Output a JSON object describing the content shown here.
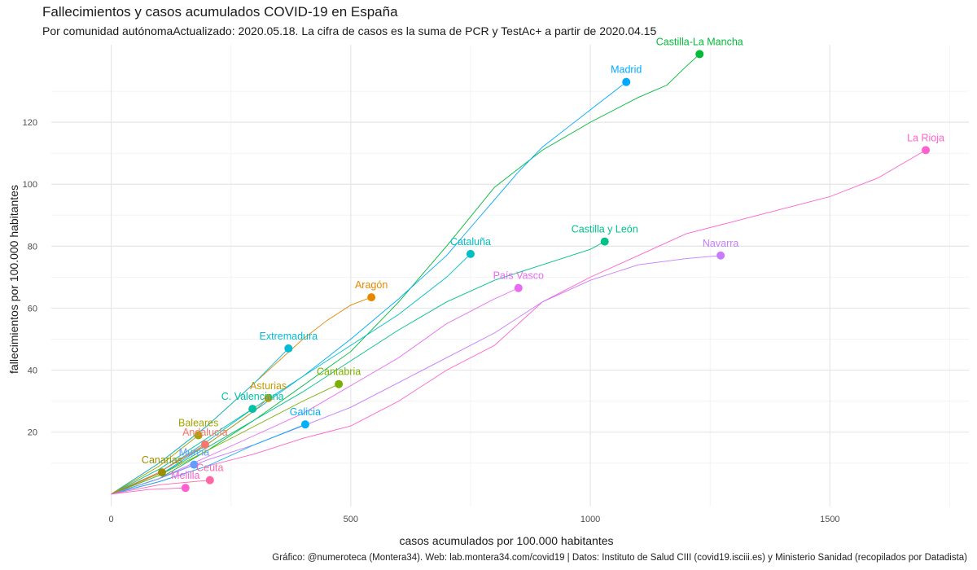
{
  "title": "Fallecimientos y casos acumulados COVID-19 en España",
  "subtitle": "Por comunidad autónomaActualizado: 2020.05.18. La cifra de casos es la suma de PCR y TestAc+ a partir de 2020.04.15",
  "caption": "Gráfico: @numeroteca (Montera34). Web: lab.montera34.com/covid19 | Datos: Instituto de Salud CIII (covid19.isciii.es) y Ministerio Sanidad (recopilados por Datadista)",
  "chart_data": {
    "type": "line",
    "xlabel": "casos acumulados por 100.000 habitantes",
    "ylabel": "fallecimientos por 100.000 habitantes",
    "xlim": [
      -125,
      1790
    ],
    "ylim": [
      -4,
      145
    ],
    "xticks": [
      0,
      500,
      1000,
      1500
    ],
    "yticks": [
      20,
      40,
      60,
      80,
      100,
      120
    ],
    "grid": true,
    "legend": "none",
    "series": [
      {
        "name": "Castilla-La Mancha",
        "color": "#00BA38",
        "x": [
          0,
          100,
          200,
          300,
          400,
          500,
          600,
          700,
          800,
          900,
          1000,
          1100,
          1160,
          1200,
          1228
        ],
        "y": [
          0,
          5,
          14,
          24,
          35,
          46,
          62,
          80,
          99,
          111,
          120,
          128,
          132,
          138,
          142
        ]
      },
      {
        "name": "Madrid",
        "color": "#00A9FF",
        "x": [
          0,
          100,
          200,
          300,
          400,
          500,
          600,
          700,
          750,
          800,
          850,
          900,
          950,
          1000,
          1050,
          1075
        ],
        "y": [
          0,
          6,
          16,
          27,
          38,
          50,
          63,
          77,
          86,
          95,
          104,
          112,
          118,
          124,
          130,
          133
        ]
      },
      {
        "name": "La Rioja",
        "color": "#FF61CC",
        "x": [
          0,
          100,
          200,
          300,
          400,
          500,
          600,
          700,
          800,
          900,
          1000,
          1100,
          1200,
          1300,
          1400,
          1500,
          1600,
          1700
        ],
        "y": [
          0,
          4,
          9,
          13,
          18,
          22,
          30,
          40,
          48,
          62,
          70,
          77,
          84,
          88,
          92,
          96,
          102,
          111
        ]
      },
      {
        "name": "Castilla y León",
        "color": "#00C08B",
        "x": [
          0,
          100,
          200,
          300,
          400,
          500,
          600,
          700,
          800,
          900,
          1000,
          1030
        ],
        "y": [
          0,
          6,
          15,
          24,
          33,
          43,
          53,
          62,
          69,
          74,
          79,
          81.5
        ]
      },
      {
        "name": "Navarra",
        "color": "#C77CFF",
        "x": [
          0,
          100,
          200,
          300,
          400,
          500,
          600,
          700,
          800,
          900,
          1000,
          1100,
          1200,
          1272
        ],
        "y": [
          0,
          5,
          11,
          16,
          22,
          28,
          36,
          44,
          52,
          62,
          69,
          74,
          76,
          77
        ]
      },
      {
        "name": "Cataluña",
        "color": "#00BFC4",
        "x": [
          0,
          100,
          200,
          300,
          400,
          500,
          600,
          700,
          750
        ],
        "y": [
          0,
          7,
          17,
          28,
          38,
          48,
          58,
          70,
          77.5
        ]
      },
      {
        "name": "País Vasco",
        "color": "#E76BF3",
        "x": [
          0,
          100,
          200,
          300,
          400,
          500,
          600,
          700,
          800,
          850
        ],
        "y": [
          0,
          5,
          12,
          19,
          26,
          35,
          44,
          55,
          63,
          66.5
        ]
      },
      {
        "name": "Aragón",
        "color": "#E58700",
        "x": [
          0,
          100,
          200,
          300,
          400,
          450,
          500,
          543
        ],
        "y": [
          0,
          10,
          22,
          36,
          50,
          56,
          61,
          63.5
        ]
      },
      {
        "name": "Extremadura",
        "color": "#00BCD8",
        "x": [
          0,
          100,
          200,
          300,
          370
        ],
        "y": [
          0,
          10,
          22,
          36,
          47
        ]
      },
      {
        "name": "Asturias",
        "color": "#C99800",
        "x": [
          0,
          100,
          200,
          300,
          328
        ],
        "y": [
          0,
          7,
          16,
          27,
          31
        ]
      },
      {
        "name": "Cantabria",
        "color": "#7CAE00",
        "x": [
          0,
          100,
          200,
          300,
          400,
          475
        ],
        "y": [
          0,
          6,
          14,
          22,
          30,
          35.5
        ]
      },
      {
        "name": "C. Valenciana",
        "color": "#00C1A3",
        "x": [
          0,
          100,
          200,
          295
        ],
        "y": [
          0,
          8,
          18,
          27.5
        ]
      },
      {
        "name": "Galicia",
        "color": "#00B0F6",
        "x": [
          0,
          100,
          200,
          300,
          405
        ],
        "y": [
          0,
          4,
          9,
          16,
          22.5
        ]
      },
      {
        "name": "Baleares",
        "color": "#A3A500",
        "x": [
          0,
          100,
          182
        ],
        "y": [
          0,
          9,
          19
        ]
      },
      {
        "name": "Andalucía",
        "color": "#F8766D",
        "x": [
          0,
          100,
          196
        ],
        "y": [
          0,
          7,
          16
        ]
      },
      {
        "name": "Murcia",
        "color": "#619CFF",
        "x": [
          0,
          100,
          173
        ],
        "y": [
          0,
          5,
          9.5
        ]
      },
      {
        "name": "Canarias",
        "color": "#9C8E00",
        "x": [
          0,
          60,
          106
        ],
        "y": [
          0,
          4,
          7
        ]
      },
      {
        "name": "Ceuta",
        "color": "#FF67A4",
        "x": [
          0,
          100,
          206
        ],
        "y": [
          0,
          3,
          4.5
        ]
      },
      {
        "name": "Melilla",
        "color": "#FD61D1",
        "x": [
          0,
          80,
          155
        ],
        "y": [
          0,
          1.5,
          2
        ]
      }
    ]
  }
}
